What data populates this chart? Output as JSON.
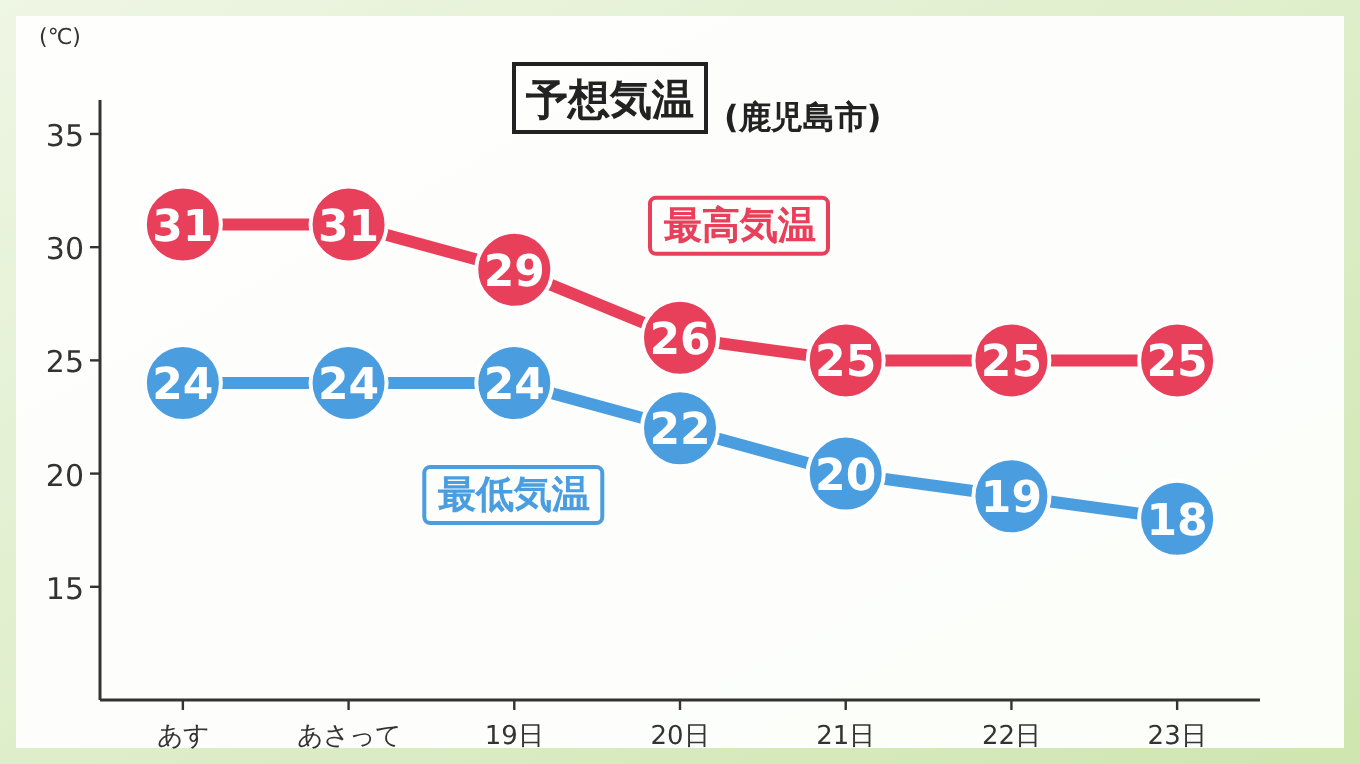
{
  "chart_data": {
    "type": "line",
    "title": "予想気温",
    "subtitle": "(鹿児島市)",
    "ylabel": "(℃)",
    "categories": [
      "あす",
      "あさって",
      "19日",
      "20日",
      "21日",
      "22日",
      "23日"
    ],
    "series": [
      {
        "name": "最高気温",
        "color": "#e8405a",
        "values": [
          31,
          31,
          29,
          26,
          25,
          25,
          25
        ]
      },
      {
        "name": "最低気温",
        "color": "#4a9ee0",
        "values": [
          24,
          24,
          24,
          22,
          20,
          19,
          18
        ]
      }
    ],
    "ylim": [
      10,
      36.5
    ],
    "yticks": [
      15,
      20,
      25,
      30,
      35
    ],
    "data_labels": true,
    "marker": "circle"
  }
}
